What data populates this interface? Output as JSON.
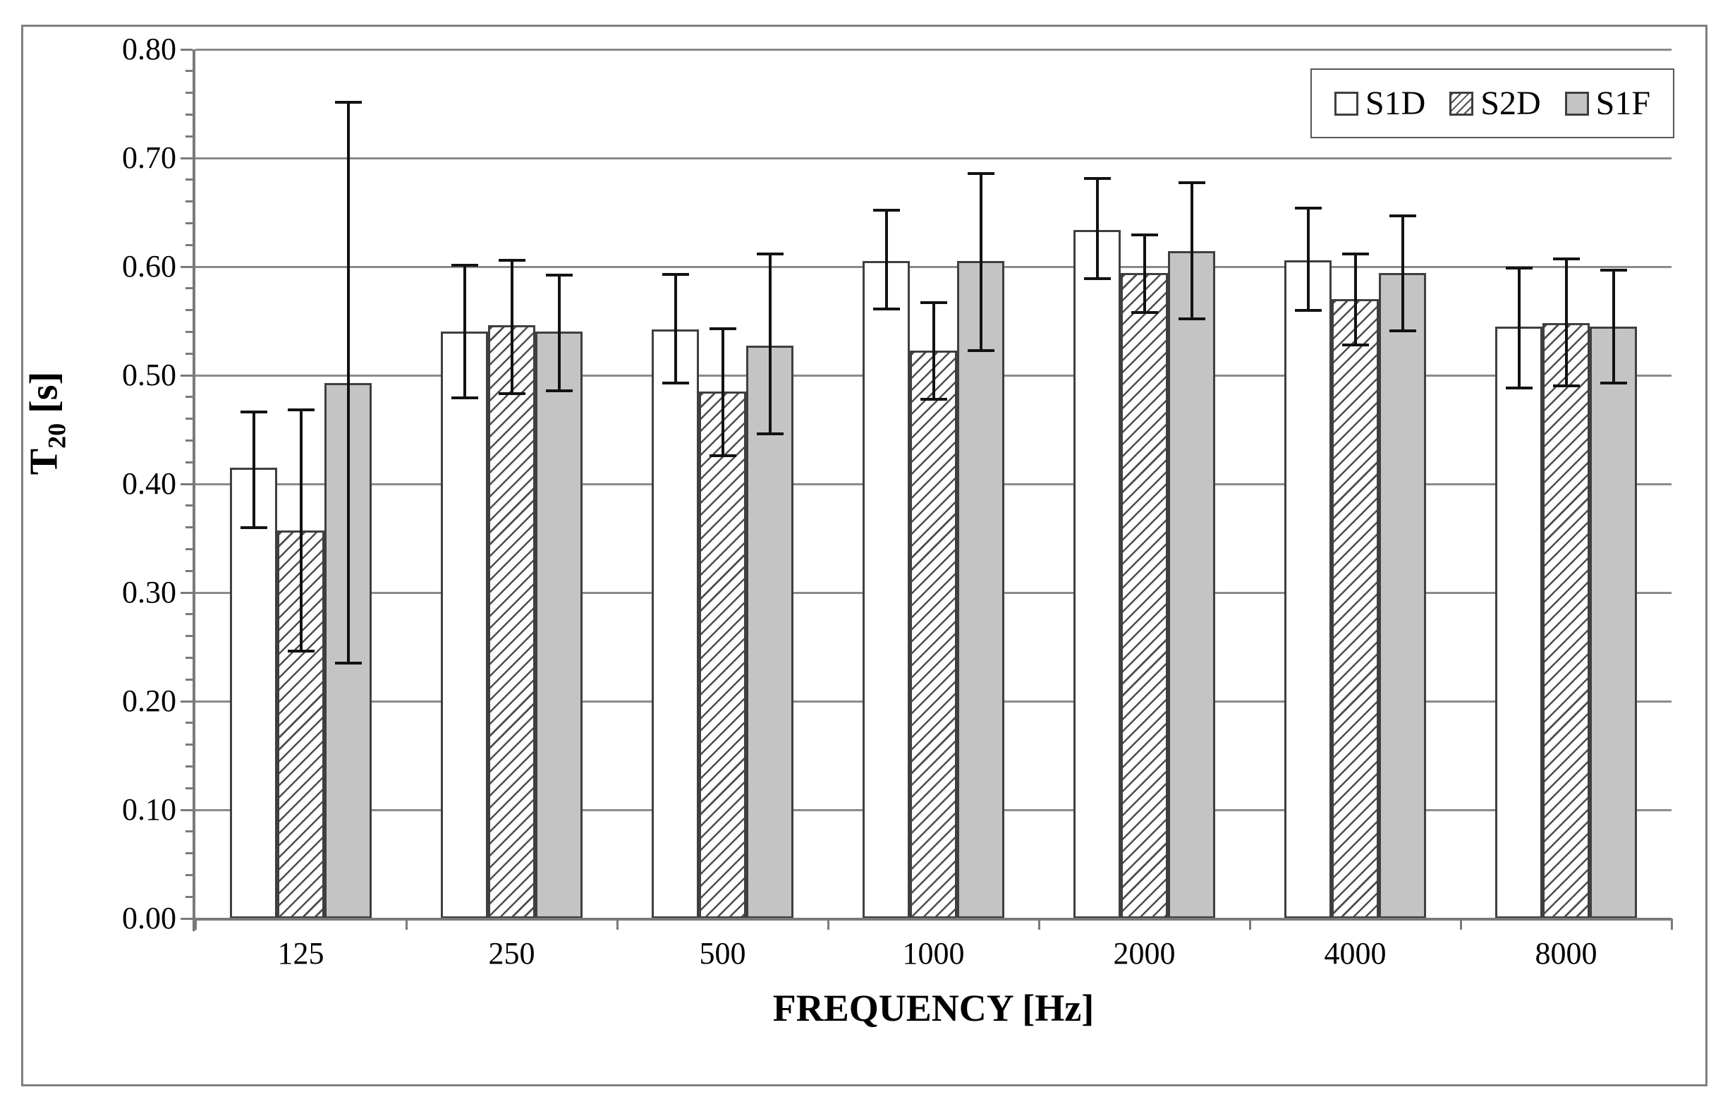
{
  "chart_data": {
    "type": "bar",
    "title": "",
    "xlabel": "FREQUENCY [Hz]",
    "ylabel": {
      "base": "T",
      "sub": "20",
      "rest": " [s]"
    },
    "categories": [
      "125",
      "250",
      "500",
      "1000",
      "2000",
      "4000",
      "8000"
    ],
    "ylim": [
      0.0,
      0.8
    ],
    "y_tick_step": 0.1,
    "y_minor_tick_step": 0.02,
    "y_tick_labels": [
      "0.80",
      "0.70",
      "0.60",
      "0.50",
      "0.40",
      "0.30",
      "0.20",
      "0.10",
      "0.00"
    ],
    "grid": true,
    "legend_position": "top-right",
    "series": [
      {
        "name": "S1D",
        "fill": "white",
        "values": [
          0.415,
          0.54,
          0.542,
          0.605,
          0.634,
          0.606,
          0.545
        ],
        "error_low": [
          0.36,
          0.479,
          0.493,
          0.561,
          0.589,
          0.56,
          0.488
        ],
        "error_high": [
          0.466,
          0.601,
          0.593,
          0.652,
          0.681,
          0.654,
          0.599
        ]
      },
      {
        "name": "S2D",
        "fill": "hatch",
        "values": [
          0.357,
          0.546,
          0.485,
          0.523,
          0.594,
          0.57,
          0.548
        ],
        "error_low": [
          0.246,
          0.483,
          0.426,
          0.478,
          0.558,
          0.528,
          0.49
        ],
        "error_high": [
          0.468,
          0.606,
          0.543,
          0.567,
          0.629,
          0.612,
          0.607
        ]
      },
      {
        "name": "S1F",
        "fill": "gray",
        "values": [
          0.493,
          0.54,
          0.527,
          0.605,
          0.614,
          0.594,
          0.545
        ],
        "error_low": [
          0.235,
          0.486,
          0.446,
          0.523,
          0.552,
          0.541,
          0.493
        ],
        "error_high": [
          0.751,
          0.592,
          0.612,
          0.686,
          0.677,
          0.647,
          0.597
        ]
      }
    ],
    "colors": {
      "background": "#ffffff",
      "gridline": "#8a8a8a",
      "axis": "#7a7a7a",
      "bar_border": "#3f3f3f",
      "gray_fill": "#c4c4c4",
      "error_bar": "#121212",
      "figure_border": "#7f7f7f",
      "text": "#000000"
    }
  }
}
